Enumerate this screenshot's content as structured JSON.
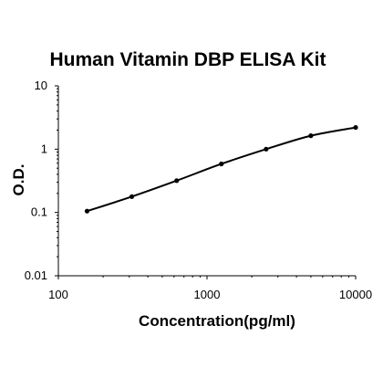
{
  "chart_data": {
    "type": "line",
    "title": "Human Vitamin DBP ELISA Kit",
    "xlabel": "Concentration(pg/ml)",
    "ylabel": "O.D.",
    "x_scale": "log",
    "y_scale": "log",
    "xlim": [
      100,
      10000
    ],
    "ylim": [
      0.01,
      10
    ],
    "x_ticks": [
      100,
      1000,
      10000
    ],
    "x_tick_labels": [
      "100",
      "1000",
      "10000"
    ],
    "y_ticks": [
      0.01,
      0.1,
      1,
      10
    ],
    "y_tick_labels": [
      "0.01",
      "0.1",
      "1",
      "10"
    ],
    "grid": false,
    "legend": "none",
    "series": [
      {
        "x": [
          156,
          312,
          625,
          1250,
          2500,
          5000,
          10000
        ],
        "y": [
          0.105,
          0.178,
          0.318,
          0.585,
          1.0,
          1.63,
          2.2
        ]
      }
    ],
    "colors": {
      "line": "#000000",
      "marker": "#000000",
      "axis": "#000000"
    }
  }
}
